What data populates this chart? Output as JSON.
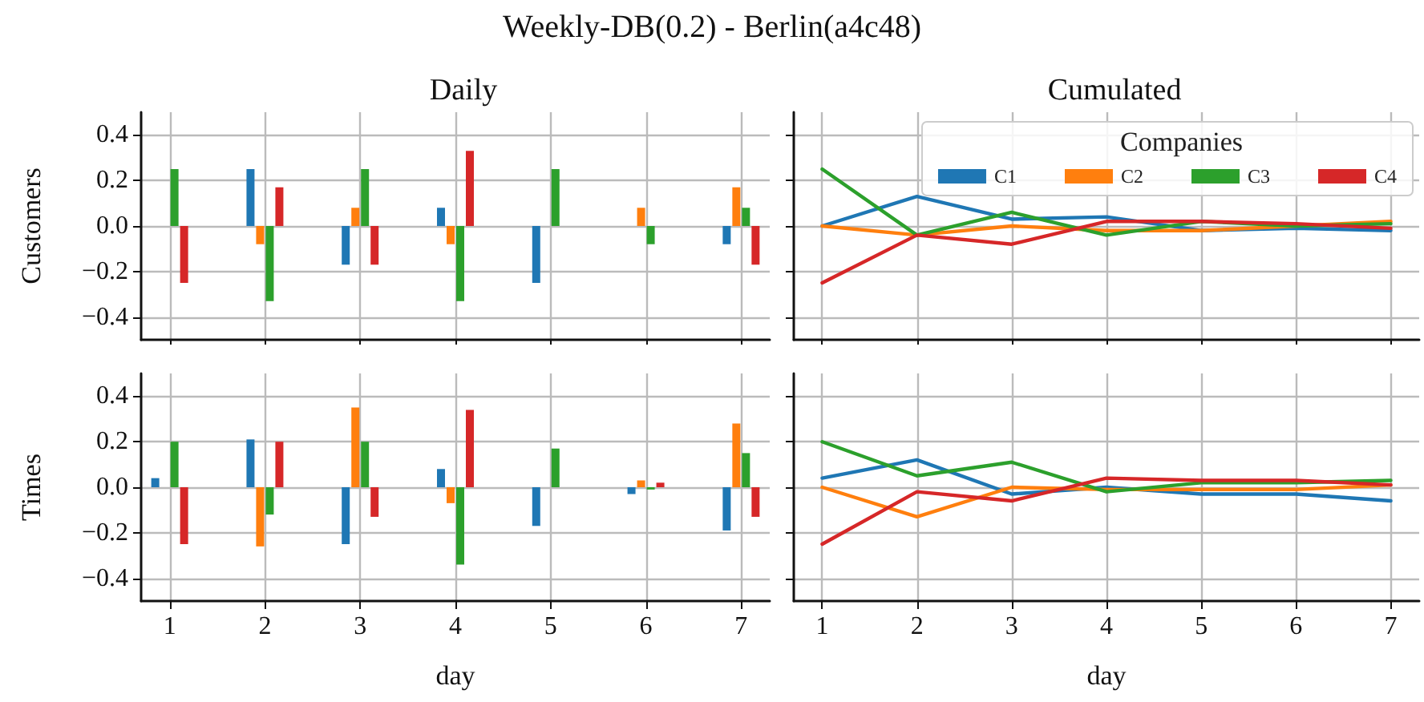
{
  "chart_data": [
    {
      "type": "bar",
      "title": "Weekly-DB(0.2) - Berlin(a4c48)",
      "subtitle": "Daily",
      "ylabel": "Customers",
      "x": [
        1,
        2,
        3,
        4,
        5,
        6,
        7
      ],
      "xlim": [
        0.7,
        7.3
      ],
      "xticks": [
        1,
        2,
        3,
        4,
        5,
        6,
        7
      ],
      "ylim": [
        -0.5,
        0.5
      ],
      "yticks": [
        {
          "value": -0.4,
          "label": "−0.4"
        },
        {
          "value": -0.2,
          "label": "−0.2"
        },
        {
          "value": 0,
          "label": "0.0"
        },
        {
          "value": 0.2,
          "label": "0.2"
        },
        {
          "value": 0.4,
          "label": "0.4"
        }
      ],
      "grid": true,
      "tick_labels": "y",
      "series": [
        {
          "color": "#1f77b4",
          "values": [
            0,
            0.25,
            -0.17,
            0.08,
            -0.25,
            0,
            -0.08
          ]
        },
        {
          "color": "#ff7f0e",
          "values": [
            0,
            -0.08,
            0.08,
            -0.08,
            0,
            0.08,
            0.17
          ]
        },
        {
          "color": "#2ca02c",
          "values": [
            0.25,
            -0.33,
            0.25,
            -0.33,
            0.25,
            -0.08,
            0.08
          ]
        },
        {
          "color": "#d62728",
          "values": [
            -0.25,
            0.17,
            -0.17,
            0.33,
            0,
            0,
            -0.17
          ]
        }
      ]
    },
    {
      "type": "line",
      "title": "Cumulated",
      "legend_title": "Companies",
      "x": [
        1,
        2,
        3,
        4,
        5,
        6,
        7
      ],
      "xlim": [
        0.7,
        7.3
      ],
      "xticks": [
        1,
        2,
        3,
        4,
        5,
        6,
        7
      ],
      "ylim": [
        -0.5,
        0.5
      ],
      "yticks": [
        {
          "value": -0.4,
          "label": null
        },
        {
          "value": -0.2,
          "label": null
        },
        {
          "value": 0,
          "label": null
        },
        {
          "value": 0.2,
          "label": null
        },
        {
          "value": 0.4,
          "label": null
        }
      ],
      "grid": true,
      "tick_labels": false,
      "legend": "top right",
      "marker": "none",
      "line_style": "solid",
      "series": [
        {
          "name": "C1",
          "color": "#1f77b4",
          "values": [
            0,
            0.13,
            0.03,
            0.04,
            -0.02,
            -0.01,
            -0.02
          ]
        },
        {
          "name": "C2",
          "color": "#ff7f0e",
          "values": [
            0,
            -0.04,
            0,
            -0.02,
            -0.02,
            0,
            0.02
          ]
        },
        {
          "name": "C3",
          "color": "#2ca02c",
          "values": [
            0.25,
            -0.04,
            0.06,
            -0.04,
            0.02,
            0,
            0.01
          ]
        },
        {
          "name": "C4",
          "color": "#d62728",
          "values": [
            -0.25,
            -0.04,
            -0.08,
            0.02,
            0.02,
            0.01,
            -0.01
          ]
        }
      ]
    },
    {
      "type": "bar",
      "ylabel": "Times",
      "xlabel": "day",
      "x": [
        1,
        2,
        3,
        4,
        5,
        6,
        7
      ],
      "xlim": [
        0.7,
        7.3
      ],
      "xticks": [
        1,
        2,
        3,
        4,
        5,
        6,
        7
      ],
      "ylim": [
        -0.5,
        0.5
      ],
      "yticks": [
        {
          "value": -0.4,
          "label": "−0.4"
        },
        {
          "value": -0.2,
          "label": "−0.2"
        },
        {
          "value": 0,
          "label": "0.0"
        },
        {
          "value": 0.2,
          "label": "0.2"
        },
        {
          "value": 0.4,
          "label": "0.4"
        }
      ],
      "grid": true,
      "series": [
        {
          "color": "#1f77b4",
          "values": [
            0.04,
            0.21,
            -0.25,
            0.08,
            -0.17,
            -0.03,
            -0.19
          ]
        },
        {
          "color": "#ff7f0e",
          "values": [
            0,
            -0.26,
            0.35,
            -0.07,
            0,
            0.03,
            0.28
          ]
        },
        {
          "color": "#2ca02c",
          "values": [
            0.2,
            -0.12,
            0.2,
            -0.34,
            0.17,
            -0.01,
            0.15
          ]
        },
        {
          "color": "#d62728",
          "values": [
            -0.25,
            0.2,
            -0.13,
            0.34,
            0,
            0.02,
            -0.13
          ]
        }
      ]
    },
    {
      "type": "line",
      "xlabel": "day",
      "x": [
        1,
        2,
        3,
        4,
        5,
        6,
        7
      ],
      "xlim": [
        0.7,
        7.3
      ],
      "xticks": [
        1,
        2,
        3,
        4,
        5,
        6,
        7
      ],
      "ylim": [
        -0.5,
        0.5
      ],
      "yticks": [
        {
          "value": -0.4,
          "label": null
        },
        {
          "value": -0.2,
          "label": null
        },
        {
          "value": 0,
          "label": null
        },
        {
          "value": 0.2,
          "label": null
        },
        {
          "value": 0.4,
          "label": null
        }
      ],
      "grid": true,
      "tick_labels": "x",
      "marker": "none",
      "line_style": "solid",
      "series": [
        {
          "color": "#1f77b4",
          "values": [
            0.04,
            0.12,
            -0.03,
            0,
            -0.03,
            -0.03,
            -0.06
          ]
        },
        {
          "color": "#ff7f0e",
          "values": [
            0,
            -0.13,
            0,
            -0.01,
            -0.01,
            -0.01,
            0.01
          ]
        },
        {
          "color": "#2ca02c",
          "values": [
            0.2,
            0.05,
            0.11,
            -0.02,
            0.02,
            0.02,
            0.03
          ]
        },
        {
          "color": "#d62728",
          "values": [
            -0.25,
            -0.02,
            -0.06,
            0.04,
            0.03,
            0.03,
            0.01
          ]
        }
      ]
    }
  ]
}
